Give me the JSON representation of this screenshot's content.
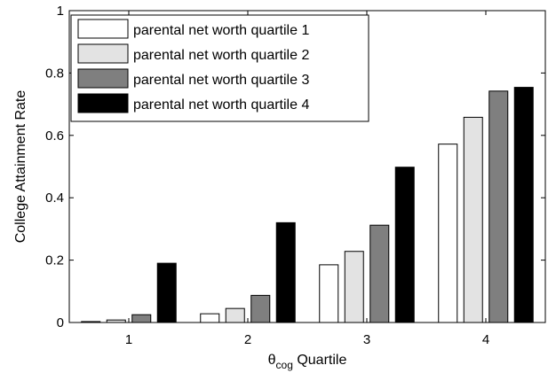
{
  "chart_data": {
    "type": "bar",
    "title": "",
    "xlabel_main": "θ",
    "xlabel_sub": "cog",
    "xlabel_suffix": " Quartile",
    "ylabel": "College Attainment Rate",
    "categories": [
      "1",
      "2",
      "3",
      "4"
    ],
    "ylim": [
      0,
      1
    ],
    "yticks": [
      0,
      0.2,
      0.4,
      0.6,
      0.8,
      1
    ],
    "ytick_labels": [
      "0",
      "0.2",
      "0.4",
      "0.6",
      "0.8",
      "1"
    ],
    "grid": false,
    "legend_position": "top-left",
    "series": [
      {
        "name": "parental net worth quartile 1",
        "color": "#ffffff",
        "values": [
          0.003,
          0.028,
          0.185,
          0.572
        ]
      },
      {
        "name": "parental net worth quartile 2",
        "color": "#e3e3e3",
        "values": [
          0.008,
          0.045,
          0.228,
          0.658
        ]
      },
      {
        "name": "parental net worth quartile 3",
        "color": "#7f7f7f",
        "values": [
          0.025,
          0.087,
          0.312,
          0.742
        ]
      },
      {
        "name": "parental net worth quartile 4",
        "color": "#000000",
        "values": [
          0.19,
          0.32,
          0.498,
          0.754
        ]
      }
    ]
  }
}
